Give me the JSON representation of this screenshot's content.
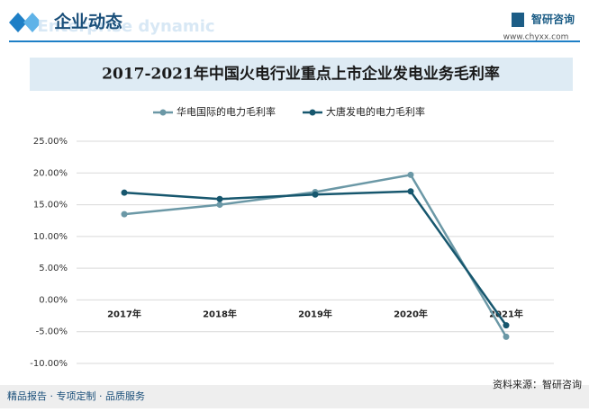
{
  "header": {
    "title": "企业动态",
    "subtitle": "Enterprise dynamic",
    "brand": "智研咨询",
    "url": "www.chyxx.com"
  },
  "chart_data": {
    "type": "line",
    "title": "2017-2021年中国火电行业重点上市企业发电业务毛利率",
    "categories": [
      "2017年",
      "2018年",
      "2019年",
      "2020年",
      "2021年"
    ],
    "series": [
      {
        "name": "华电国际的电力毛利率",
        "color": "#6b98a6",
        "values": [
          13.5,
          15.0,
          17.0,
          19.7,
          -5.8
        ]
      },
      {
        "name": "大唐发电的电力毛利率",
        "color": "#17576e",
        "values": [
          16.9,
          15.9,
          16.6,
          17.1,
          -4.0
        ]
      }
    ],
    "ylim": [
      -10,
      25
    ],
    "yticks": [
      {
        "value": -10,
        "label": "-10.00%"
      },
      {
        "value": -5,
        "label": "-5.00%"
      },
      {
        "value": 0,
        "label": "0.00%"
      },
      {
        "value": 5,
        "label": "5.00%"
      },
      {
        "value": 10,
        "label": "10.00%"
      },
      {
        "value": 15,
        "label": "15.00%"
      },
      {
        "value": 20,
        "label": "20.00%"
      },
      {
        "value": 25,
        "label": "25.00%"
      }
    ],
    "grid": true,
    "legend": "top"
  },
  "footer": {
    "tagline": "精品报告 · 专项定制 · 品质服务",
    "source": "资料来源：智研咨询"
  }
}
